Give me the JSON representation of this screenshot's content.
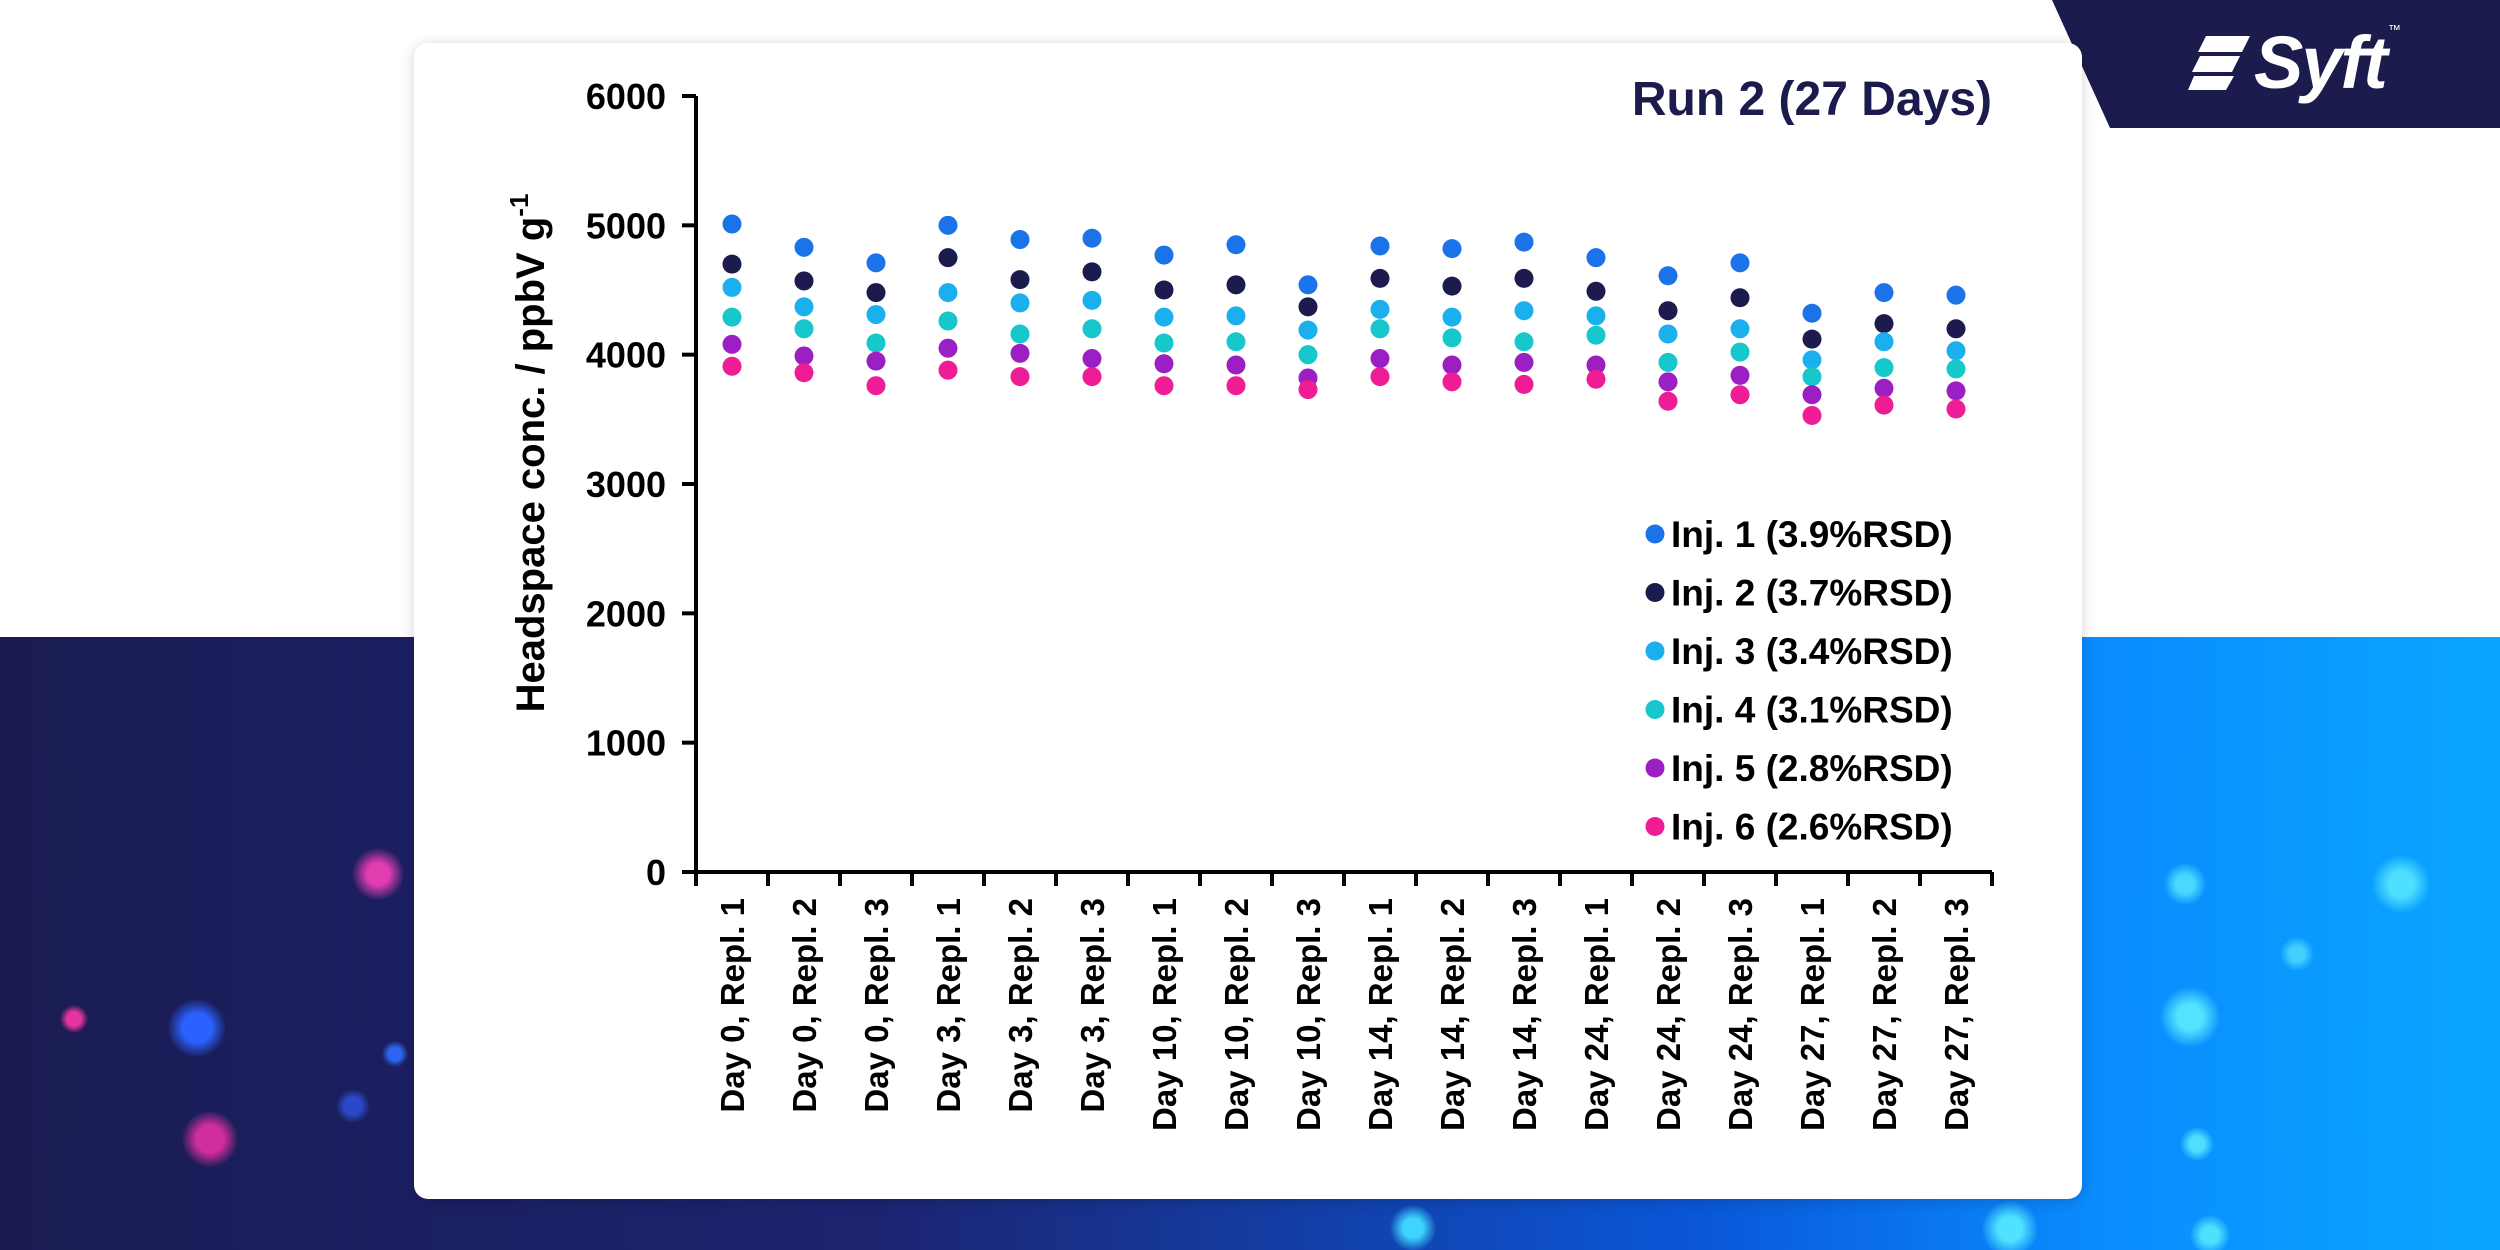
{
  "brand": {
    "name": "Syft",
    "trademark": "™"
  },
  "chart_data": {
    "type": "scatter",
    "title": "Run 2 (27 Days)",
    "xlabel": "",
    "ylabel": "Headspace conc. / ppbV g",
    "ylabel_superscript": "-1",
    "ylim": [
      0,
      6000
    ],
    "yticks": [
      "0",
      "1000",
      "2000",
      "3000",
      "4000",
      "5000",
      "6000"
    ],
    "grid": false,
    "legend_position": "bottom-right",
    "categories": [
      "Day 0, Repl. 1",
      "Day 0, Repl. 2",
      "Day 0, Repl. 3",
      "Day 3, Repl. 1",
      "Day 3, Repl. 2",
      "Day 3, Repl. 3",
      "Day 10, Repl. 1",
      "Day 10, Repl. 2",
      "Day 10, Repl. 3",
      "Day 14, Repl. 1",
      "Day 14, Repl. 2",
      "Day 14, Repl. 3",
      "Day 24, Repl. 1",
      "Day 24, Repl. 2",
      "Day 24, Repl. 3",
      "Day 27, Repl. 1",
      "Day 27, Repl. 2",
      "Day 27, Repl. 3"
    ],
    "series": [
      {
        "name": "Inj. 1 (3.9%RSD)",
        "color": "#1a73e8",
        "values": [
          5010,
          4830,
          4710,
          5000,
          4890,
          4900,
          4770,
          4850,
          4540,
          4840,
          4820,
          4870,
          4750,
          4610,
          4710,
          4320,
          4480,
          4460
        ]
      },
      {
        "name": "Inj. 2 (3.7%RSD)",
        "color": "#1b1c4d",
        "values": [
          4700,
          4570,
          4480,
          4750,
          4580,
          4640,
          4500,
          4540,
          4370,
          4590,
          4530,
          4590,
          4490,
          4340,
          4440,
          4120,
          4240,
          4200
        ]
      },
      {
        "name": "Inj. 3 (3.4%RSD)",
        "color": "#1ab0ee",
        "values": [
          4520,
          4370,
          4310,
          4480,
          4400,
          4420,
          4290,
          4300,
          4190,
          4350,
          4290,
          4340,
          4300,
          4160,
          4200,
          3960,
          4100,
          4030
        ]
      },
      {
        "name": "Inj. 4 (3.1%RSD)",
        "color": "#16c7cc",
        "values": [
          4290,
          4200,
          4090,
          4260,
          4160,
          4200,
          4090,
          4100,
          4000,
          4200,
          4130,
          4100,
          4150,
          3940,
          4020,
          3830,
          3900,
          3890
        ]
      },
      {
        "name": "Inj. 5 (2.8%RSD)",
        "color": "#9b1fc2",
        "values": [
          4080,
          3990,
          3950,
          4050,
          4010,
          3970,
          3930,
          3920,
          3820,
          3970,
          3920,
          3940,
          3920,
          3790,
          3840,
          3690,
          3740,
          3720
        ]
      },
      {
        "name": "Inj. 6 (2.6%RSD)",
        "color": "#ee1c95",
        "values": [
          3910,
          3860,
          3760,
          3880,
          3830,
          3830,
          3760,
          3760,
          3730,
          3830,
          3790,
          3770,
          3810,
          3640,
          3690,
          3530,
          3610,
          3580
        ]
      }
    ]
  }
}
